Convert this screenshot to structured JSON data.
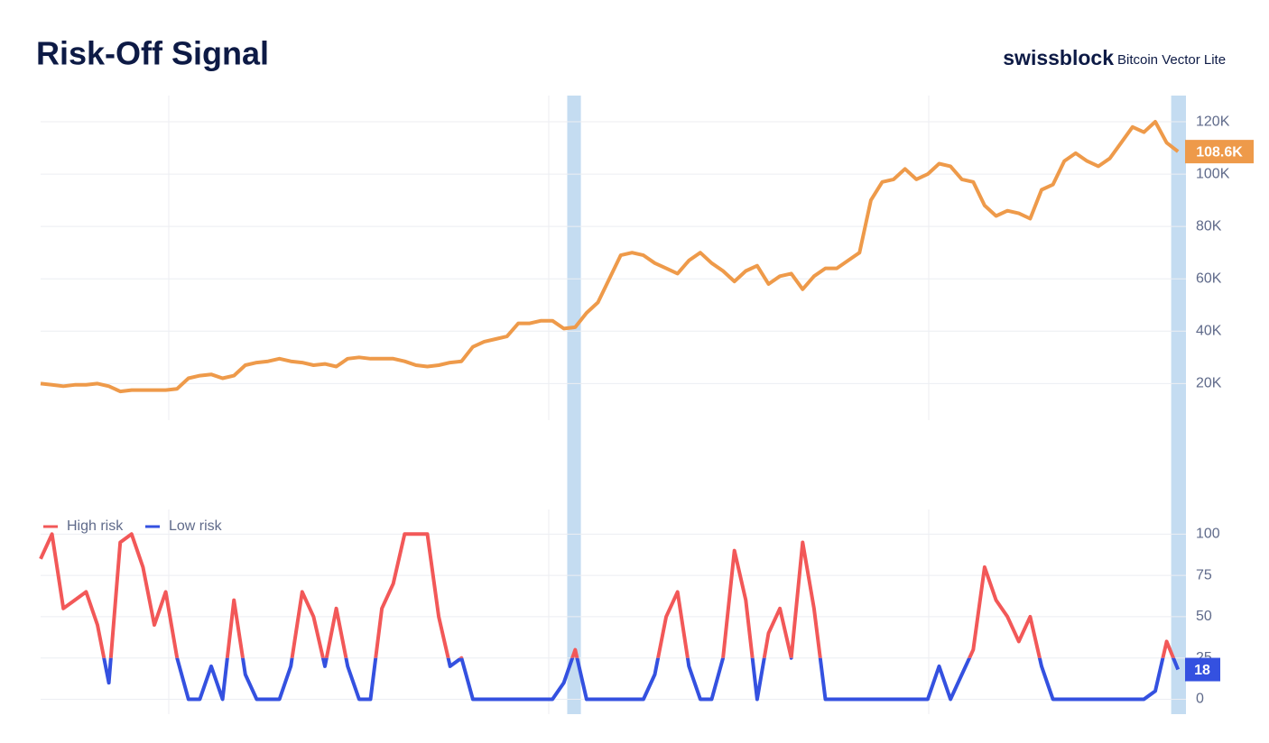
{
  "header": {
    "title": "Risk-Off Signal",
    "brand": "swissblock",
    "product": "Bitcoin Vector Lite"
  },
  "risk_off_periods": [
    [
      46.3,
      47.5
    ],
    [
      99.4,
      100.7
    ]
  ],
  "chart_data": [
    {
      "type": "line",
      "color": "#ee9a4a",
      "xlim": [
        0,
        100.7
      ],
      "ylim": [
        6000,
        130000
      ],
      "yticks": [
        {
          "value": 20000,
          "label": "20K"
        },
        {
          "value": 40000,
          "label": "40K"
        },
        {
          "value": 60000,
          "label": "60K"
        },
        {
          "value": 80000,
          "label": "80K"
        },
        {
          "value": 100000,
          "label": "100K"
        },
        {
          "value": 120000,
          "label": "120K"
        }
      ],
      "grid": true,
      "last_value_label": "108.6K",
      "values": [
        20000,
        19500,
        19000,
        19500,
        19500,
        20000,
        19000,
        17000,
        17500,
        17500,
        17500,
        17500,
        18000,
        22000,
        23000,
        23500,
        22000,
        23000,
        27000,
        28000,
        28500,
        29500,
        28500,
        28000,
        27000,
        27500,
        26500,
        29500,
        30000,
        29500,
        29500,
        29500,
        28500,
        27000,
        26500,
        27000,
        28000,
        28500,
        34000,
        36000,
        37000,
        38000,
        43000,
        43000,
        44000,
        44000,
        41000,
        41500,
        47000,
        51000,
        60000,
        69000,
        70000,
        69000,
        66000,
        64000,
        62000,
        67000,
        70000,
        66000,
        63000,
        59000,
        63000,
        65000,
        58000,
        61000,
        62000,
        56000,
        61000,
        64000,
        64000,
        67000,
        70000,
        90000,
        97000,
        98000,
        102000,
        98000,
        100000,
        104000,
        103000,
        98000,
        97000,
        88000,
        84000,
        86000,
        85000,
        83000,
        94000,
        96000,
        105000,
        108000,
        105000,
        103000,
        106000,
        112000,
        118000,
        116000,
        120000,
        112000,
        108600
      ]
    },
    {
      "type": "line",
      "threshold": 25,
      "xlim": [
        0,
        100.7
      ],
      "ylim": [
        -9,
        104
      ],
      "yticks": [
        0,
        25,
        50,
        75,
        100
      ],
      "grid": true,
      "series": [
        {
          "name": "High risk",
          "color": "#f25858"
        },
        {
          "name": "Low risk",
          "color": "#3451e0"
        }
      ],
      "values": [
        85,
        100,
        55,
        60,
        65,
        45,
        10,
        95,
        100,
        80,
        45,
        65,
        25,
        0,
        0,
        20,
        0,
        60,
        15,
        0,
        0,
        0,
        20,
        65,
        50,
        20,
        55,
        20,
        0,
        0,
        55,
        70,
        100,
        100,
        100,
        50,
        20,
        25,
        0,
        0,
        0,
        0,
        0,
        0,
        0,
        0,
        10,
        30,
        0,
        0,
        0,
        0,
        0,
        0,
        15,
        50,
        65,
        20,
        0,
        0,
        25,
        90,
        60,
        0,
        40,
        55,
        25,
        95,
        55,
        0,
        0,
        0,
        0,
        0,
        0,
        0,
        0,
        0,
        0,
        20,
        0,
        15,
        30,
        80,
        60,
        50,
        35,
        50,
        20,
        0,
        0,
        0,
        0,
        0,
        0,
        0,
        0,
        0,
        5,
        35,
        18
      ]
    }
  ]
}
